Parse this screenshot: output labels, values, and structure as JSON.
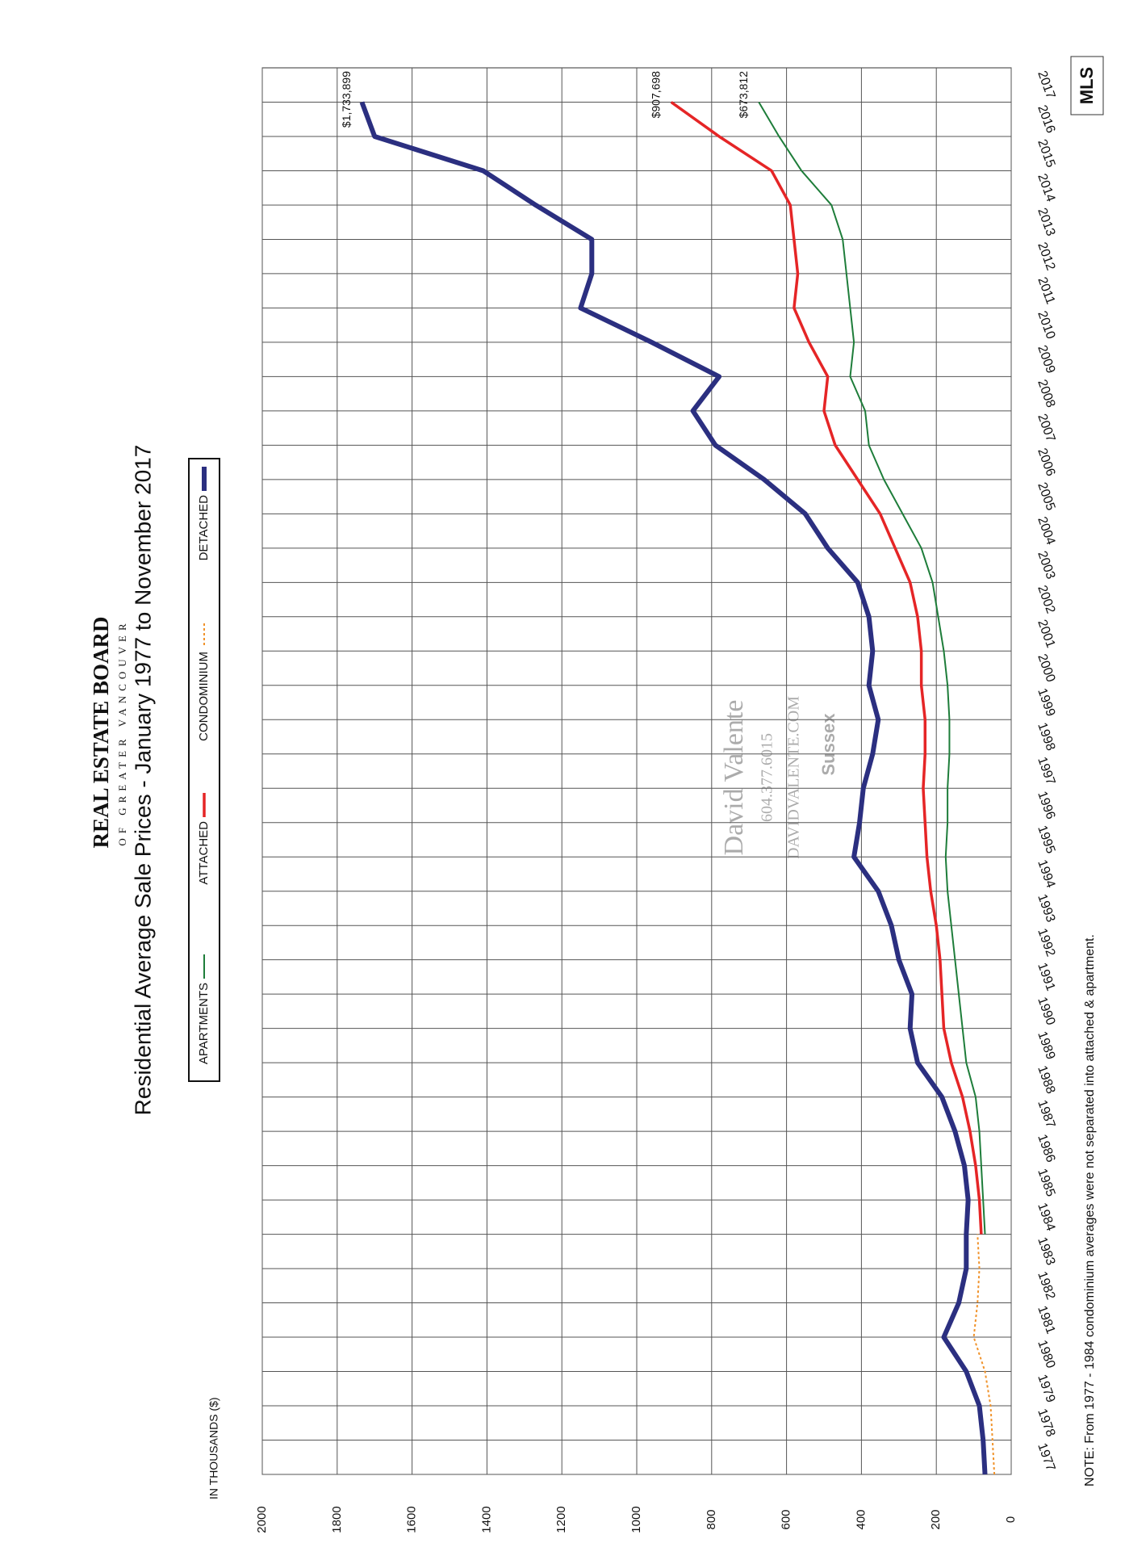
{
  "chart_data": {
    "type": "line",
    "title": "Residential Average Sale Prices  - January 1977 to November 2017",
    "y_label": "IN THOUSANDS ($)",
    "note": "NOTE:  From 1977 - 1984 condominium averages were not separated into attached & apartment.",
    "x": [
      1977,
      1978,
      1979,
      1980,
      1981,
      1982,
      1983,
      1984,
      1985,
      1986,
      1987,
      1988,
      1989,
      1990,
      1991,
      1992,
      1993,
      1994,
      1995,
      1996,
      1997,
      1998,
      1999,
      2000,
      2001,
      2002,
      2003,
      2004,
      2005,
      2006,
      2007,
      2008,
      2009,
      2010,
      2011,
      2012,
      2013,
      2014,
      2015,
      2016,
      2017
    ],
    "series": [
      {
        "name": "DETACHED",
        "color": "#2b2f80",
        "values": [
          70,
          75,
          85,
          120,
          180,
          140,
          120,
          120,
          115,
          125,
          150,
          185,
          250,
          270,
          265,
          300,
          320,
          355,
          420,
          405,
          395,
          370,
          355,
          380,
          370,
          380,
          410,
          490,
          550,
          660,
          790,
          850,
          780,
          960,
          1150,
          1120,
          1120,
          1270,
          1410,
          1700,
          1734
        ]
      },
      {
        "name": "CONDOMINIUM",
        "color": "#f0922a",
        "values": [
          45,
          50,
          55,
          70,
          100,
          90,
          85,
          90,
          null,
          null,
          null,
          null,
          null,
          null,
          null,
          null,
          null,
          null,
          null,
          null,
          null,
          null,
          null,
          null,
          null,
          null,
          null,
          null,
          null,
          null,
          null,
          null,
          null,
          null,
          null,
          null,
          null,
          null,
          null,
          null,
          null
        ]
      },
      {
        "name": "ATTACHED",
        "color": "#e52526",
        "values": [
          null,
          null,
          null,
          null,
          null,
          null,
          null,
          80,
          85,
          95,
          110,
          130,
          160,
          180,
          185,
          190,
          200,
          215,
          225,
          230,
          235,
          230,
          230,
          240,
          240,
          250,
          270,
          310,
          350,
          410,
          470,
          500,
          490,
          540,
          580,
          570,
          580,
          590,
          640,
          780,
          908
        ]
      },
      {
        "name": "APARTMENTS",
        "color": "#1e7d3a",
        "values": [
          null,
          null,
          null,
          null,
          null,
          null,
          null,
          70,
          75,
          80,
          85,
          95,
          120,
          130,
          140,
          150,
          160,
          170,
          175,
          170,
          170,
          165,
          165,
          170,
          180,
          195,
          210,
          240,
          290,
          340,
          380,
          390,
          430,
          420,
          430,
          440,
          450,
          480,
          560,
          620,
          674
        ]
      }
    ],
    "end_labels": [
      "$1,733,899",
      "$907,698",
      "$673,812"
    ],
    "xlim": [
      1977,
      2018
    ],
    "xticks": [
      1977,
      1978,
      1979,
      1980,
      1981,
      1982,
      1983,
      1984,
      1985,
      1986,
      1987,
      1988,
      1989,
      1990,
      1991,
      1992,
      1993,
      1994,
      1995,
      1996,
      1997,
      1998,
      1999,
      2000,
      2001,
      2002,
      2003,
      2004,
      2005,
      2006,
      2007,
      2008,
      2009,
      2010,
      2011,
      2012,
      2013,
      2014,
      2015,
      2016,
      2017
    ],
    "ylim": [
      0,
      2000
    ],
    "yticks": [
      0,
      200,
      400,
      600,
      800,
      1000,
      1200,
      1400,
      1600,
      1800,
      2000
    ],
    "grid": true
  },
  "logo": {
    "name": "REAL ESTATE BOARD",
    "sub": "OF GREATER VANCOUVER",
    "mls": "MLS"
  },
  "watermark": {
    "name": "David Valente",
    "phone": "604.377.6015",
    "web": "DAVIDVALENTE.COM",
    "brand": "Sussex"
  }
}
